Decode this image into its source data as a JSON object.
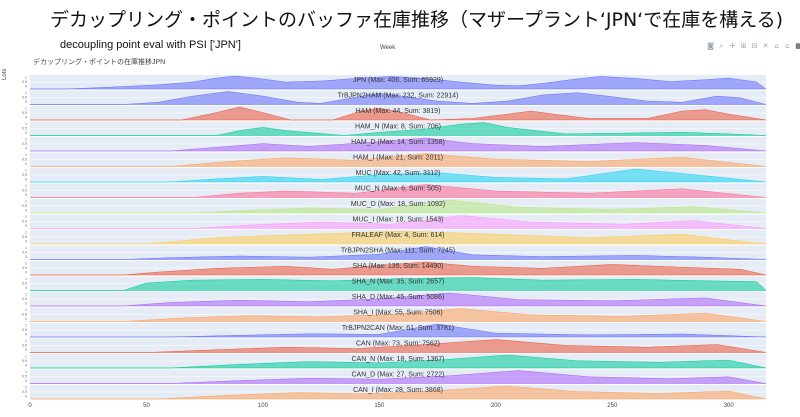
{
  "slide": {
    "title": "デカップリング・ポイントのバッファ在庫推移（マザープラント‘JPN‘で在庫を構える)",
    "subtitle": "decoupling point eval with PSI  ['JPN']"
  },
  "modebar": {
    "icons": [
      "camera-icon",
      "zoom-icon",
      "pan-icon",
      "zoom-in-icon",
      "zoom-out-icon",
      "autoscale-icon",
      "reset-axes-icon",
      "home-icon",
      "plotly-logo-icon"
    ],
    "glyphs": [
      "◙",
      "⌕",
      "✛",
      "⊞",
      "⊟",
      "✕",
      "⌂",
      "⌂",
      "▦"
    ]
  },
  "chart_data": {
    "type": "area",
    "title": "デカップリング・ポイントの在庫推移JPN",
    "xlabel": "Week",
    "ylabel": "Lots",
    "xlim": [
      0,
      316
    ],
    "x_ticks": [
      0,
      50,
      100,
      150,
      200,
      250,
      300
    ],
    "grid": true,
    "series": [
      {
        "name": "JPN (Max: 406, Sum: 65929)",
        "color": "#636efa",
        "max": 406,
        "profile": [
          [
            0,
            0
          ],
          [
            15,
            0
          ],
          [
            30,
            45
          ],
          [
            45,
            95
          ],
          [
            55,
            130
          ],
          [
            70,
            220
          ],
          [
            80,
            340
          ],
          [
            88,
            406
          ],
          [
            97,
            340
          ],
          [
            110,
            215
          ],
          [
            125,
            250
          ],
          [
            140,
            330
          ],
          [
            155,
            395
          ],
          [
            170,
            330
          ],
          [
            185,
            215
          ],
          [
            200,
            120
          ],
          [
            210,
            100
          ],
          [
            220,
            175
          ],
          [
            235,
            315
          ],
          [
            245,
            392
          ],
          [
            260,
            330
          ],
          [
            275,
            230
          ],
          [
            290,
            290
          ],
          [
            300,
            340
          ],
          [
            312,
            220
          ],
          [
            316,
            0
          ]
        ]
      },
      {
        "name": "TrBJPN2HAM (Max: 232, Sum: 22914)",
        "color": "#636efa",
        "max": 232,
        "profile": [
          [
            0,
            0
          ],
          [
            40,
            0
          ],
          [
            55,
            40
          ],
          [
            70,
            150
          ],
          [
            85,
            232
          ],
          [
            100,
            150
          ],
          [
            115,
            40
          ],
          [
            125,
            20
          ],
          [
            140,
            130
          ],
          [
            150,
            200
          ],
          [
            160,
            150
          ],
          [
            175,
            60
          ],
          [
            190,
            20
          ],
          [
            205,
            60
          ],
          [
            220,
            170
          ],
          [
            235,
            210
          ],
          [
            250,
            140
          ],
          [
            265,
            60
          ],
          [
            280,
            40
          ],
          [
            295,
            150
          ],
          [
            305,
            120
          ],
          [
            316,
            0
          ]
        ]
      },
      {
        "name": "HAM (Max: 44, Sum: 3819)",
        "color": "#ef553b",
        "max": 44,
        "profile": [
          [
            0,
            0
          ],
          [
            65,
            0
          ],
          [
            80,
            25
          ],
          [
            90,
            44
          ],
          [
            100,
            25
          ],
          [
            112,
            0
          ],
          [
            130,
            0
          ],
          [
            142,
            30
          ],
          [
            150,
            40
          ],
          [
            160,
            25
          ],
          [
            172,
            0
          ],
          [
            190,
            5
          ],
          [
            205,
            20
          ],
          [
            215,
            30
          ],
          [
            225,
            20
          ],
          [
            240,
            5
          ],
          [
            265,
            5
          ],
          [
            280,
            30
          ],
          [
            290,
            35
          ],
          [
            300,
            20
          ],
          [
            312,
            5
          ],
          [
            316,
            0
          ]
        ]
      },
      {
        "name": "HAM_N (Max: 8, Sum: 706)",
        "color": "#00cc96",
        "max": 8,
        "profile": [
          [
            0,
            0
          ],
          [
            80,
            0
          ],
          [
            90,
            3
          ],
          [
            100,
            5
          ],
          [
            110,
            3
          ],
          [
            135,
            0
          ],
          [
            150,
            2
          ],
          [
            170,
            4
          ],
          [
            185,
            7
          ],
          [
            195,
            8
          ],
          [
            205,
            5
          ],
          [
            230,
            1
          ],
          [
            280,
            2
          ],
          [
            300,
            1
          ],
          [
            316,
            0
          ]
        ]
      },
      {
        "name": "HAM_D (Max: 14, Sum: 1358)",
        "color": "#ab63fa",
        "max": 14,
        "profile": [
          [
            0,
            0
          ],
          [
            60,
            0
          ],
          [
            80,
            4
          ],
          [
            100,
            8
          ],
          [
            120,
            5
          ],
          [
            150,
            10
          ],
          [
            170,
            14
          ],
          [
            190,
            8
          ],
          [
            220,
            5
          ],
          [
            260,
            9
          ],
          [
            290,
            6
          ],
          [
            316,
            0
          ]
        ]
      },
      {
        "name": "HAM_I (Max: 21, Sum: 2011)",
        "color": "#ffa15a",
        "max": 21,
        "profile": [
          [
            0,
            0
          ],
          [
            60,
            0
          ],
          [
            85,
            8
          ],
          [
            110,
            14
          ],
          [
            140,
            10
          ],
          [
            170,
            21
          ],
          [
            200,
            12
          ],
          [
            240,
            8
          ],
          [
            280,
            15
          ],
          [
            316,
            0
          ]
        ]
      },
      {
        "name": "MUC (Max: 42, Sum: 3112)",
        "color": "#19d3f3",
        "max": 42,
        "profile": [
          [
            0,
            0
          ],
          [
            60,
            0
          ],
          [
            80,
            10
          ],
          [
            100,
            18
          ],
          [
            125,
            8
          ],
          [
            150,
            24
          ],
          [
            175,
            30
          ],
          [
            200,
            15
          ],
          [
            230,
            10
          ],
          [
            260,
            42
          ],
          [
            290,
            20
          ],
          [
            316,
            0
          ]
        ]
      },
      {
        "name": "MUC_N (Max: 6, Sum: 505)",
        "color": "#ff6692",
        "max": 6,
        "profile": [
          [
            0,
            0
          ],
          [
            70,
            0
          ],
          [
            90,
            2
          ],
          [
            110,
            3
          ],
          [
            140,
            2
          ],
          [
            170,
            6
          ],
          [
            200,
            3
          ],
          [
            240,
            2
          ],
          [
            280,
            4
          ],
          [
            316,
            0
          ]
        ]
      },
      {
        "name": "MUC_D (Max: 18, Sum: 1092)",
        "color": "#b6e880",
        "max": 18,
        "profile": [
          [
            0,
            0
          ],
          [
            70,
            0
          ],
          [
            95,
            4
          ],
          [
            120,
            7
          ],
          [
            150,
            5
          ],
          [
            180,
            18
          ],
          [
            210,
            8
          ],
          [
            250,
            5
          ],
          [
            285,
            9
          ],
          [
            316,
            0
          ]
        ]
      },
      {
        "name": "MUC_I (Max: 18, Sum: 1543)",
        "color": "#ff97ff",
        "max": 18,
        "profile": [
          [
            0,
            0
          ],
          [
            70,
            0
          ],
          [
            95,
            5
          ],
          [
            125,
            9
          ],
          [
            155,
            6
          ],
          [
            185,
            18
          ],
          [
            215,
            9
          ],
          [
            255,
            6
          ],
          [
            285,
            11
          ],
          [
            316,
            0
          ]
        ]
      },
      {
        "name": "FRALEAF (Max: 4, Sum: 614)",
        "color": "#fecb52",
        "max": 4,
        "profile": [
          [
            0,
            0
          ],
          [
            50,
            0
          ],
          [
            80,
            2
          ],
          [
            120,
            3
          ],
          [
            160,
            4
          ],
          [
            200,
            3
          ],
          [
            240,
            2
          ],
          [
            280,
            3
          ],
          [
            316,
            0
          ]
        ]
      },
      {
        "name": "TrBJPN2SHA (Max: 111, Sum: 7245)",
        "color": "#636efa",
        "max": 111,
        "profile": [
          [
            0,
            0
          ],
          [
            40,
            0
          ],
          [
            60,
            15
          ],
          [
            90,
            30
          ],
          [
            120,
            20
          ],
          [
            150,
            45
          ],
          [
            170,
            111
          ],
          [
            190,
            40
          ],
          [
            220,
            25
          ],
          [
            260,
            35
          ],
          [
            290,
            20
          ],
          [
            316,
            0
          ]
        ]
      },
      {
        "name": "SHA (Max: 135, Sum: 14490)",
        "color": "#ef553b",
        "max": 135,
        "profile": [
          [
            0,
            0
          ],
          [
            40,
            0
          ],
          [
            55,
            30
          ],
          [
            80,
            70
          ],
          [
            110,
            90
          ],
          [
            130,
            60
          ],
          [
            150,
            100
          ],
          [
            170,
            135
          ],
          [
            190,
            90
          ],
          [
            220,
            70
          ],
          [
            250,
            110
          ],
          [
            280,
            80
          ],
          [
            305,
            60
          ],
          [
            316,
            0
          ]
        ]
      },
      {
        "name": "SHA_N (Max: 35, Sum: 2657)",
        "color": "#00cc96",
        "max": 35,
        "profile": [
          [
            0,
            0
          ],
          [
            40,
            0
          ],
          [
            50,
            20
          ],
          [
            70,
            28
          ],
          [
            100,
            30
          ],
          [
            130,
            26
          ],
          [
            160,
            32
          ],
          [
            190,
            35
          ],
          [
            220,
            28
          ],
          [
            260,
            30
          ],
          [
            290,
            26
          ],
          [
            312,
            24
          ],
          [
            316,
            0
          ]
        ]
      },
      {
        "name": "SHA_D (Max: 45, Sum: 5086)",
        "color": "#ab63fa",
        "max": 45,
        "profile": [
          [
            0,
            0
          ],
          [
            40,
            0
          ],
          [
            60,
            12
          ],
          [
            90,
            20
          ],
          [
            120,
            15
          ],
          [
            150,
            25
          ],
          [
            180,
            45
          ],
          [
            210,
            22
          ],
          [
            250,
            18
          ],
          [
            290,
            28
          ],
          [
            316,
            0
          ]
        ]
      },
      {
        "name": "SHA_I (Max: 55, Sum: 7506)",
        "color": "#ffa15a",
        "max": 55,
        "profile": [
          [
            0,
            0
          ],
          [
            40,
            0
          ],
          [
            65,
            15
          ],
          [
            95,
            25
          ],
          [
            125,
            20
          ],
          [
            155,
            30
          ],
          [
            185,
            55
          ],
          [
            215,
            28
          ],
          [
            255,
            22
          ],
          [
            290,
            35
          ],
          [
            316,
            0
          ]
        ]
      },
      {
        "name": "TrBJPN2CAN (Max: 61, Sum: 3781)",
        "color": "#636efa",
        "max": 61,
        "profile": [
          [
            0,
            0
          ],
          [
            60,
            0
          ],
          [
            90,
            8
          ],
          [
            120,
            15
          ],
          [
            150,
            12
          ],
          [
            175,
            61
          ],
          [
            200,
            18
          ],
          [
            240,
            10
          ],
          [
            280,
            14
          ],
          [
            316,
            0
          ]
        ]
      },
      {
        "name": "CAN (Max: 73, Sum: 7562)",
        "color": "#ef553b",
        "max": 73,
        "profile": [
          [
            0,
            0
          ],
          [
            50,
            0
          ],
          [
            80,
            15
          ],
          [
            110,
            30
          ],
          [
            140,
            22
          ],
          [
            170,
            45
          ],
          [
            200,
            73
          ],
          [
            230,
            40
          ],
          [
            265,
            30
          ],
          [
            295,
            45
          ],
          [
            316,
            0
          ]
        ]
      },
      {
        "name": "CAN_N (Max: 18, Sum: 1367)",
        "color": "#00cc96",
        "max": 18,
        "profile": [
          [
            0,
            0
          ],
          [
            60,
            0
          ],
          [
            90,
            5
          ],
          [
            120,
            9
          ],
          [
            150,
            7
          ],
          [
            180,
            12
          ],
          [
            205,
            18
          ],
          [
            235,
            10
          ],
          [
            270,
            8
          ],
          [
            300,
            11
          ],
          [
            316,
            0
          ]
        ]
      },
      {
        "name": "CAN_D (Max: 27, Sum: 2722)",
        "color": "#ab63fa",
        "max": 27,
        "profile": [
          [
            0,
            0
          ],
          [
            60,
            0
          ],
          [
            90,
            6
          ],
          [
            120,
            11
          ],
          [
            150,
            9
          ],
          [
            180,
            16
          ],
          [
            210,
            27
          ],
          [
            240,
            14
          ],
          [
            275,
            10
          ],
          [
            300,
            14
          ],
          [
            316,
            0
          ]
        ]
      },
      {
        "name": "CAN_I (Max: 28, Sum: 3868)",
        "color": "#ffa15a",
        "max": 28,
        "profile": [
          [
            0,
            0
          ],
          [
            55,
            0
          ],
          [
            85,
            8
          ],
          [
            115,
            14
          ],
          [
            145,
            11
          ],
          [
            175,
            18
          ],
          [
            205,
            28
          ],
          [
            235,
            16
          ],
          [
            270,
            12
          ],
          [
            300,
            17
          ],
          [
            316,
            0
          ]
        ]
      }
    ]
  }
}
